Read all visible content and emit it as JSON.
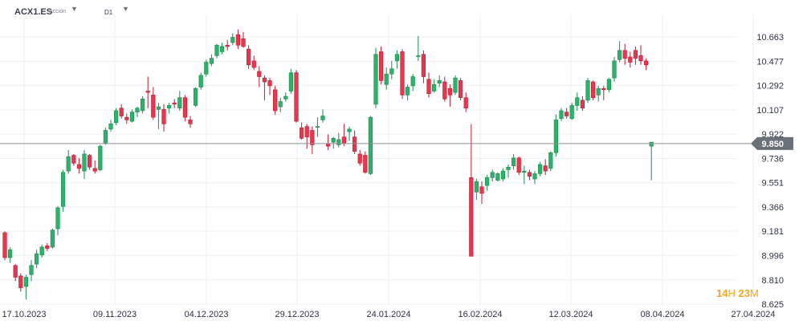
{
  "header": {
    "symbol": "ACX1.ES",
    "instrument_type": "Acción",
    "timeframe": "D1",
    "symbol_caret_icon": "caret-down-icon",
    "timeframe_caret_icon": "caret-down-icon"
  },
  "countdown": {
    "hours": "14",
    "h_unit": "H",
    "minutes": "23",
    "m_unit": "M"
  },
  "colors": {
    "up": "#2db26b",
    "up_border": "#1e8a4f",
    "down": "#e8364f",
    "down_border": "#b81f35",
    "price_line": "#8a9097",
    "price_badge": "#6b7178",
    "countdown": "#f5a623"
  },
  "chart_data": {
    "type": "candlestick",
    "x_tick_labels": [
      "17.10.2023",
      "09.11.2023",
      "04.12.2023",
      "29.12.2023",
      "24.01.2024",
      "16.02.2024",
      "12.03.2024",
      "08.04.2024",
      "27.04.2024"
    ],
    "y_ticks": [
      10.663,
      10.477,
      10.292,
      10.107,
      9.922,
      9.736,
      9.551,
      9.366,
      9.181,
      8.996,
      8.81,
      8.625
    ],
    "ylim": [
      8.625,
      10.663
    ],
    "current_price": 9.85,
    "current_price_label": "9.850",
    "grid": true,
    "candles": [
      [
        9.17,
        9.18,
        8.96,
        8.98
      ],
      [
        8.98,
        9.06,
        8.94,
        9.04
      ],
      [
        8.92,
        8.93,
        8.8,
        8.83
      ],
      [
        8.84,
        8.86,
        8.72,
        8.75
      ],
      [
        8.76,
        8.85,
        8.66,
        8.83
      ],
      [
        8.85,
        8.96,
        8.8,
        8.92
      ],
      [
        8.93,
        9.04,
        8.9,
        9.01
      ],
      [
        9.0,
        9.08,
        8.98,
        9.06
      ],
      [
        9.07,
        9.09,
        9.03,
        9.05
      ],
      [
        9.06,
        9.2,
        9.05,
        9.19
      ],
      [
        9.2,
        9.37,
        9.15,
        9.36
      ],
      [
        9.37,
        9.65,
        9.33,
        9.63
      ],
      [
        9.64,
        9.8,
        9.62,
        9.75
      ],
      [
        9.76,
        9.77,
        9.68,
        9.7
      ],
      [
        9.69,
        9.74,
        9.62,
        9.66
      ],
      [
        9.64,
        9.8,
        9.58,
        9.77
      ],
      [
        9.76,
        9.77,
        9.65,
        9.67
      ],
      [
        9.66,
        9.72,
        9.62,
        9.64
      ],
      [
        9.65,
        9.84,
        9.64,
        9.83
      ],
      [
        9.85,
        9.97,
        9.84,
        9.95
      ],
      [
        9.96,
        10.03,
        9.94,
        10.0
      ],
      [
        10.01,
        10.12,
        9.99,
        10.1
      ],
      [
        10.12,
        10.15,
        10.04,
        10.06
      ],
      [
        10.05,
        10.08,
        10.0,
        10.03
      ],
      [
        10.02,
        10.11,
        10.01,
        10.09
      ],
      [
        10.09,
        10.13,
        10.05,
        10.12
      ],
      [
        10.1,
        10.21,
        10.08,
        10.19
      ],
      [
        10.25,
        10.36,
        10.12,
        10.24
      ],
      [
        10.22,
        10.28,
        10.03,
        10.05
      ],
      [
        10.11,
        10.16,
        9.96,
        10.13
      ],
      [
        10.11,
        10.15,
        9.94,
        10.0
      ],
      [
        10.12,
        10.16,
        10.08,
        10.14
      ],
      [
        10.16,
        10.19,
        10.12,
        10.15
      ],
      [
        10.12,
        10.25,
        10.1,
        10.2
      ],
      [
        10.2,
        10.22,
        10.02,
        10.05
      ],
      [
        10.03,
        10.06,
        9.97,
        10.0
      ],
      [
        10.14,
        10.28,
        10.13,
        10.27
      ],
      [
        10.28,
        10.39,
        10.26,
        10.37
      ],
      [
        10.38,
        10.49,
        10.36,
        10.47
      ],
      [
        10.46,
        10.53,
        10.44,
        10.5
      ],
      [
        10.52,
        10.61,
        10.5,
        10.6
      ],
      [
        10.55,
        10.62,
        10.53,
        10.59
      ],
      [
        10.6,
        10.64,
        10.56,
        10.59
      ],
      [
        10.62,
        10.69,
        10.6,
        10.66
      ],
      [
        10.68,
        10.72,
        10.57,
        10.6
      ],
      [
        10.65,
        10.7,
        10.58,
        10.59
      ],
      [
        10.57,
        10.6,
        10.42,
        10.45
      ],
      [
        10.48,
        10.52,
        10.41,
        10.43
      ],
      [
        10.4,
        10.44,
        10.28,
        10.36
      ],
      [
        10.35,
        10.37,
        10.18,
        10.32
      ],
      [
        10.33,
        10.35,
        10.22,
        10.29
      ],
      [
        10.26,
        10.29,
        10.07,
        10.1
      ],
      [
        10.13,
        10.2,
        10.09,
        10.17
      ],
      [
        10.19,
        10.24,
        10.17,
        10.21
      ],
      [
        10.25,
        10.42,
        10.23,
        10.39
      ],
      [
        10.39,
        10.41,
        10.01,
        10.02
      ],
      [
        9.97,
        10.01,
        9.88,
        9.89
      ],
      [
        9.98,
        10.0,
        9.81,
        9.9
      ],
      [
        9.95,
        9.98,
        9.77,
        9.84
      ],
      [
        9.98,
        10.05,
        9.9,
        9.98
      ],
      [
        10.03,
        10.11,
        10.01,
        10.06
      ],
      [
        9.85,
        9.92,
        9.8,
        9.83
      ],
      [
        9.86,
        9.9,
        9.81,
        9.89
      ],
      [
        9.84,
        9.93,
        9.82,
        9.88
      ],
      [
        9.9,
        10.0,
        9.83,
        9.85
      ],
      [
        9.94,
        9.98,
        9.87,
        9.96
      ],
      [
        9.9,
        9.95,
        9.77,
        9.79
      ],
      [
        9.77,
        9.8,
        9.68,
        9.7
      ],
      [
        9.76,
        9.79,
        9.62,
        9.63
      ],
      [
        9.62,
        10.06,
        9.61,
        10.05
      ],
      [
        10.15,
        10.58,
        10.12,
        10.53
      ],
      [
        10.55,
        10.59,
        10.3,
        10.33
      ],
      [
        10.3,
        10.43,
        10.26,
        10.38
      ],
      [
        10.38,
        10.48,
        10.34,
        10.42
      ],
      [
        10.48,
        10.56,
        10.42,
        10.53
      ],
      [
        10.55,
        10.57,
        10.19,
        10.22
      ],
      [
        10.22,
        10.3,
        10.18,
        10.28
      ],
      [
        10.29,
        10.38,
        10.25,
        10.36
      ],
      [
        10.52,
        10.67,
        10.48,
        10.52
      ],
      [
        10.53,
        10.56,
        10.31,
        10.36
      ],
      [
        10.34,
        10.39,
        10.2,
        10.23
      ],
      [
        10.25,
        10.34,
        10.24,
        10.3
      ],
      [
        10.31,
        10.37,
        10.28,
        10.33
      ],
      [
        10.32,
        10.36,
        10.17,
        10.19
      ],
      [
        10.27,
        10.3,
        10.13,
        10.22
      ],
      [
        10.24,
        10.37,
        10.22,
        10.35
      ],
      [
        10.33,
        10.35,
        10.18,
        10.2
      ],
      [
        10.2,
        10.24,
        10.09,
        10.12
      ],
      [
        9.59,
        10.0,
        8.99,
        8.99
      ],
      [
        9.48,
        9.58,
        9.42,
        9.56
      ],
      [
        9.52,
        9.56,
        9.39,
        9.47
      ],
      [
        9.53,
        9.61,
        9.49,
        9.59
      ],
      [
        9.59,
        9.65,
        9.56,
        9.63
      ],
      [
        9.57,
        9.63,
        9.56,
        9.62
      ],
      [
        9.58,
        9.66,
        9.56,
        9.64
      ],
      [
        9.65,
        9.69,
        9.59,
        9.67
      ],
      [
        9.68,
        9.77,
        9.65,
        9.74
      ],
      [
        9.74,
        9.75,
        9.61,
        9.63
      ],
      [
        9.63,
        9.68,
        9.54,
        9.64
      ],
      [
        9.63,
        9.65,
        9.57,
        9.6
      ],
      [
        9.58,
        9.64,
        9.54,
        9.62
      ],
      [
        9.62,
        9.71,
        9.6,
        9.69
      ],
      [
        9.68,
        9.73,
        9.61,
        9.64
      ],
      [
        9.66,
        9.79,
        9.64,
        9.78
      ],
      [
        9.78,
        10.07,
        9.75,
        10.03
      ],
      [
        10.04,
        10.12,
        10.02,
        10.1
      ],
      [
        10.09,
        10.12,
        10.04,
        10.06
      ],
      [
        10.04,
        10.16,
        10.03,
        10.14
      ],
      [
        10.14,
        10.24,
        10.1,
        10.2
      ],
      [
        10.18,
        10.21,
        10.1,
        10.12
      ],
      [
        10.18,
        10.35,
        10.16,
        10.33
      ],
      [
        10.32,
        10.33,
        10.18,
        10.2
      ],
      [
        10.22,
        10.29,
        10.17,
        10.27
      ],
      [
        10.27,
        10.29,
        10.18,
        10.26
      ],
      [
        10.26,
        10.35,
        10.24,
        10.34
      ],
      [
        10.35,
        10.51,
        10.32,
        10.48
      ],
      [
        10.49,
        10.63,
        10.47,
        10.56
      ],
      [
        10.56,
        10.61,
        10.45,
        10.5
      ],
      [
        10.51,
        10.55,
        10.43,
        10.47
      ],
      [
        10.56,
        10.59,
        10.45,
        10.5
      ],
      [
        10.52,
        10.6,
        10.45,
        10.48
      ],
      [
        10.48,
        10.5,
        10.41,
        10.45
      ],
      [
        9.83,
        9.86,
        9.57,
        9.86
      ]
    ]
  }
}
